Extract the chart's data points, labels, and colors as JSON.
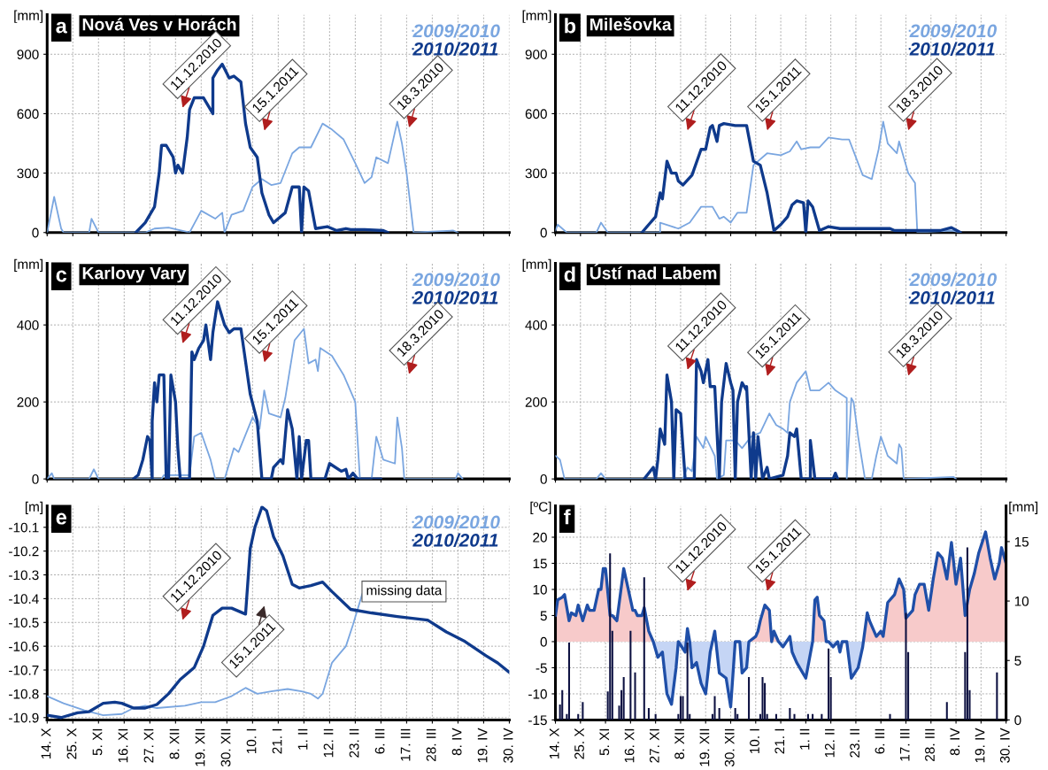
{
  "chart_data": [
    {
      "type": "line",
      "title": "Nová Ves v Horách",
      "ylabel": "[mm]",
      "annotations": [
        "a",
        "11.12.2010",
        "15.1.2011",
        "18.3.2010"
      ],
      "xlim": [
        "2010-10-14",
        "2011-04-30"
      ],
      "xticks": [
        "2010-10-14",
        "2010-10-25",
        "2010-11-05",
        "2010-11-16",
        "2010-11-27",
        "2010-12-08",
        "2010-12-19",
        "2010-12-30",
        "2011-01-10",
        "2011-01-21",
        "2011-02-01",
        "2011-02-12",
        "2011-02-23",
        "2011-03-06",
        "2011-03-17",
        "2011-03-28",
        "2011-04-08",
        "2011-04-19",
        "2011-04-30"
      ],
      "ylim": [
        0,
        1100
      ],
      "yticks": [
        0,
        300,
        600,
        900
      ],
      "tick_labels": "y",
      "grid": true,
      "legend": "top right",
      "series": [
        {
          "name": "2009/2010",
          "color": "#7aa6e0",
          "x": [
            "2010-10-14",
            "2010-10-17",
            "2010-10-20",
            "2010-10-21",
            "2010-11-01",
            "2010-11-02",
            "2010-11-05",
            "2010-11-25",
            "2010-11-29",
            "2010-12-05",
            "2010-12-14",
            "2010-12-19",
            "2010-12-25",
            "2010-12-28",
            "2010-12-29",
            "2011-01-01",
            "2011-01-06",
            "2011-01-10",
            "2011-01-14",
            "2011-01-18",
            "2011-01-22",
            "2011-01-27",
            "2011-01-30",
            "2011-02-04",
            "2011-02-09",
            "2011-02-13",
            "2011-02-18",
            "2011-02-23",
            "2011-02-27",
            "2011-03-02",
            "2011-03-04",
            "2011-03-09",
            "2011-03-13",
            "2011-03-15",
            "2011-03-17",
            "2011-03-20",
            "2011-04-06",
            "2011-04-08"
          ],
          "values": [
            0,
            180,
            20,
            0,
            0,
            70,
            0,
            0,
            20,
            25,
            0,
            110,
            70,
            100,
            0,
            90,
            110,
            230,
            270,
            240,
            250,
            400,
            430,
            430,
            550,
            520,
            470,
            350,
            250,
            280,
            380,
            350,
            560,
            450,
            300,
            0,
            10,
            0
          ]
        },
        {
          "name": "2010/2011",
          "color": "#0f3a8c",
          "x": [
            "2010-11-21",
            "2010-11-25",
            "2010-11-29",
            "2010-12-01",
            "2010-12-02",
            "2010-12-04",
            "2010-12-07",
            "2010-12-08",
            "2010-12-09",
            "2010-12-11",
            "2010-12-13",
            "2010-12-14",
            "2010-12-16",
            "2010-12-20",
            "2010-12-24",
            "2010-12-24",
            "2010-12-26",
            "2010-12-28",
            "2010-12-31",
            "2011-01-02",
            "2011-01-05",
            "2011-01-07",
            "2011-01-09",
            "2011-01-12",
            "2011-01-14",
            "2011-01-17",
            "2011-01-19",
            "2011-01-24",
            "2011-01-27",
            "2011-01-30",
            "2011-01-31",
            "2011-02-01",
            "2011-02-03",
            "2011-02-06",
            "2011-02-11",
            "2011-02-15",
            "2011-02-19",
            "2011-02-21",
            "2011-02-27",
            "2011-03-07",
            "2011-03-09"
          ],
          "values": [
            0,
            50,
            130,
            300,
            440,
            440,
            380,
            300,
            340,
            300,
            480,
            620,
            680,
            680,
            600,
            780,
            820,
            850,
            780,
            790,
            760,
            550,
            430,
            380,
            200,
            90,
            50,
            100,
            230,
            230,
            0,
            230,
            210,
            20,
            30,
            10,
            20,
            15,
            15,
            10,
            0
          ]
        }
      ]
    },
    {
      "type": "line",
      "title": "Milešovka",
      "ylabel": "[mm]",
      "annotations": [
        "b",
        "11.12.2010",
        "15.1.2011",
        "18.3.2010"
      ],
      "xlim": [
        "2010-10-14",
        "2011-04-30"
      ],
      "xticks": [
        "2010-10-14",
        "2010-10-25",
        "2010-11-05",
        "2010-11-16",
        "2010-11-27",
        "2010-12-08",
        "2010-12-19",
        "2010-12-30",
        "2011-01-10",
        "2011-01-21",
        "2011-02-01",
        "2011-02-12",
        "2011-02-23",
        "2011-03-06",
        "2011-03-17",
        "2011-03-28",
        "2011-04-08",
        "2011-04-19",
        "2011-04-30"
      ],
      "ylim": [
        0,
        1100
      ],
      "yticks": [
        0,
        300,
        600,
        900
      ],
      "tick_labels": "y",
      "grid": true,
      "legend": "top right",
      "series": [
        {
          "name": "2009/2010",
          "color": "#7aa6e0",
          "x": [
            "2010-10-14",
            "2010-10-15",
            "2010-10-19",
            "2010-11-01",
            "2010-11-03",
            "2010-11-06",
            "2010-11-29",
            "2010-11-29",
            "2010-12-07",
            "2010-12-12",
            "2010-12-17",
            "2010-12-22",
            "2010-12-25",
            "2010-12-27",
            "2010-12-30",
            "2011-01-02",
            "2011-01-06",
            "2011-01-09",
            "2011-01-15",
            "2011-01-21",
            "2011-01-25",
            "2011-01-28",
            "2011-01-30",
            "2011-02-03",
            "2011-02-07",
            "2011-02-11",
            "2011-02-17",
            "2011-02-20",
            "2011-02-26",
            "2011-03-02",
            "2011-03-05",
            "2011-03-07",
            "2011-03-09",
            "2011-03-13",
            "2011-03-14",
            "2011-03-18",
            "2011-03-21",
            "2011-03-22",
            "2011-04-06",
            "2011-04-10"
          ],
          "values": [
            10,
            40,
            0,
            0,
            50,
            0,
            0,
            50,
            20,
            50,
            130,
            130,
            70,
            80,
            50,
            100,
            100,
            340,
            400,
            390,
            410,
            460,
            420,
            430,
            430,
            480,
            470,
            470,
            290,
            270,
            420,
            560,
            450,
            400,
            460,
            300,
            250,
            0,
            10,
            0
          ]
        },
        {
          "name": "2010/2011",
          "color": "#0f3a8c",
          "x": [
            "2010-11-21",
            "2010-11-24",
            "2010-11-27",
            "2010-11-29",
            "2010-11-30",
            "2010-12-02",
            "2010-12-04",
            "2010-12-06",
            "2010-12-07",
            "2010-12-09",
            "2010-12-13",
            "2010-12-17",
            "2010-12-19",
            "2010-12-21",
            "2010-12-22",
            "2010-12-24",
            "2010-12-25",
            "2010-12-27",
            "2011-01-01",
            "2011-01-05",
            "2011-01-06",
            "2011-01-09",
            "2011-01-12",
            "2011-01-15",
            "2011-01-18",
            "2011-01-21",
            "2011-01-24",
            "2011-01-26",
            "2011-01-28",
            "2011-01-31",
            "2011-02-01",
            "2011-02-02",
            "2011-02-04",
            "2011-02-07",
            "2011-02-11",
            "2011-02-16",
            "2011-02-23",
            "2011-03-10",
            "2011-03-12",
            "2011-04-01",
            "2011-04-06",
            "2011-04-10"
          ],
          "values": [
            0,
            40,
            80,
            200,
            170,
            360,
            300,
            300,
            260,
            240,
            290,
            420,
            420,
            530,
            540,
            460,
            540,
            550,
            540,
            540,
            540,
            360,
            340,
            200,
            10,
            40,
            80,
            140,
            160,
            150,
            0,
            160,
            130,
            10,
            30,
            20,
            20,
            20,
            10,
            10,
            25,
            0
          ]
        }
      ]
    },
    {
      "type": "line",
      "title": "Karlovy Vary",
      "ylabel": "[mm]",
      "annotations": [
        "c",
        "11.12.2010",
        "15.1.2011",
        "18.3.2010"
      ],
      "xlim": [
        "2010-10-14",
        "2011-04-30"
      ],
      "xticks": [
        "2010-10-14",
        "2010-10-25",
        "2010-11-05",
        "2010-11-16",
        "2010-11-27",
        "2010-12-08",
        "2010-12-19",
        "2010-12-30",
        "2011-01-10",
        "2011-01-21",
        "2011-02-01",
        "2011-02-12",
        "2011-02-23",
        "2011-03-06",
        "2011-03-17",
        "2011-03-28",
        "2011-04-08",
        "2011-04-19",
        "2011-04-30"
      ],
      "ylim": [
        0,
        560
      ],
      "yticks": [
        0,
        200,
        400
      ],
      "tick_labels": "y",
      "grid": true,
      "legend": "top right",
      "series": [
        {
          "name": "2009/2010",
          "color": "#7aa6e0",
          "x": [
            "2010-10-14",
            "2010-10-16",
            "2010-10-17",
            "2010-11-01",
            "2010-11-03",
            "2010-11-05",
            "2010-12-02",
            "2010-12-03",
            "2010-12-14",
            "2010-12-16",
            "2010-12-19",
            "2010-12-23",
            "2010-12-25",
            "2010-12-29",
            "2011-01-02",
            "2011-01-04",
            "2011-01-10",
            "2011-01-13",
            "2011-01-15",
            "2011-01-17",
            "2011-01-22",
            "2011-01-24",
            "2011-01-28",
            "2011-02-01",
            "2011-02-03",
            "2011-02-06",
            "2011-02-07",
            "2011-02-08",
            "2011-02-13",
            "2011-02-18",
            "2011-02-23",
            "2011-02-25",
            "2011-03-02",
            "2011-03-04",
            "2011-03-07",
            "2011-03-12",
            "2011-03-13",
            "2011-03-15",
            "2011-03-16",
            "2011-04-07",
            "2011-04-08",
            "2011-04-10"
          ],
          "values": [
            0,
            15,
            0,
            0,
            25,
            0,
            0,
            10,
            10,
            110,
            120,
            50,
            0,
            0,
            80,
            70,
            160,
            130,
            230,
            170,
            160,
            210,
            360,
            390,
            300,
            310,
            280,
            340,
            320,
            270,
            200,
            0,
            0,
            110,
            50,
            40,
            160,
            80,
            0,
            0,
            15,
            0
          ]
        },
        {
          "name": "2010/2011",
          "color": "#0f3a8c",
          "x": [
            "2010-11-20",
            "2010-11-22",
            "2010-11-24",
            "2010-11-26",
            "2010-11-27",
            "2010-11-28",
            "2010-11-28",
            "2010-11-29",
            "2010-11-30",
            "2010-12-01",
            "2010-12-03",
            "2010-12-04",
            "2010-12-05",
            "2010-12-06",
            "2010-12-08",
            "2010-12-09",
            "2010-12-10",
            "2010-12-14",
            "2010-12-15",
            "2010-12-16",
            "2010-12-18",
            "2010-12-20",
            "2010-12-21",
            "2010-12-23",
            "2010-12-24",
            "2010-12-26",
            "2010-12-29",
            "2010-12-31",
            "2011-01-02",
            "2011-01-05",
            "2011-01-09",
            "2011-01-12",
            "2011-01-14",
            "2011-01-18",
            "2011-01-19",
            "2011-01-22",
            "2011-01-23",
            "2011-01-25",
            "2011-01-27",
            "2011-01-29",
            "2011-01-30",
            "2011-01-31",
            "2011-02-02",
            "2011-02-03",
            "2011-02-04",
            "2011-02-10",
            "2011-02-12",
            "2011-02-17",
            "2011-02-19",
            "2011-02-20",
            "2011-02-22",
            "2011-02-24",
            "2011-03-06"
          ],
          "values": [
            0,
            10,
            50,
            110,
            100,
            0,
            150,
            250,
            200,
            270,
            270,
            0,
            0,
            270,
            200,
            80,
            0,
            0,
            330,
            310,
            340,
            360,
            400,
            310,
            380,
            460,
            400,
            380,
            390,
            390,
            220,
            150,
            0,
            0,
            30,
            50,
            40,
            180,
            130,
            0,
            110,
            0,
            100,
            100,
            0,
            0,
            40,
            20,
            25,
            0,
            15,
            0,
            0
          ]
        }
      ]
    },
    {
      "type": "line",
      "title": "Ústí nad Labem",
      "ylabel": "[mm]",
      "annotations": [
        "d",
        "11.12.2010",
        "15.1.2011",
        "18.3.2010"
      ],
      "xlim": [
        "2010-10-14",
        "2011-04-30"
      ],
      "xticks": [
        "2010-10-14",
        "2010-10-25",
        "2010-11-05",
        "2010-11-16",
        "2010-11-27",
        "2010-12-08",
        "2010-12-19",
        "2010-12-30",
        "2011-01-10",
        "2011-01-21",
        "2011-02-01",
        "2011-02-12",
        "2011-02-23",
        "2011-03-06",
        "2011-03-17",
        "2011-03-28",
        "2011-04-08",
        "2011-04-19",
        "2011-04-30"
      ],
      "ylim": [
        0,
        560
      ],
      "yticks": [
        0,
        200,
        400
      ],
      "tick_labels": "y",
      "grid": true,
      "legend": "top right",
      "series": [
        {
          "name": "2009/2010",
          "color": "#7aa6e0",
          "x": [
            "2010-10-14",
            "2010-10-16",
            "2010-10-18",
            "2010-11-01",
            "2010-11-03",
            "2010-11-05",
            "2010-12-09",
            "2010-12-11",
            "2010-12-13",
            "2010-12-15",
            "2010-12-18",
            "2010-12-19",
            "2010-12-23",
            "2010-12-24",
            "2010-12-27",
            "2010-12-28",
            "2011-01-01",
            "2011-01-04",
            "2011-01-08",
            "2011-01-12",
            "2011-01-16",
            "2011-01-19",
            "2011-01-22",
            "2011-01-24",
            "2011-01-25",
            "2011-01-28",
            "2011-02-01",
            "2011-02-03",
            "2011-02-07",
            "2011-02-11",
            "2011-02-14",
            "2011-02-19",
            "2011-02-19",
            "2011-02-21",
            "2011-02-22",
            "2011-02-24",
            "2011-02-27",
            "2011-03-02",
            "2011-03-04",
            "2011-03-06",
            "2011-03-09",
            "2011-03-13",
            "2011-03-14",
            "2011-03-15",
            "2011-03-16",
            "2011-04-07",
            "2011-04-08"
          ],
          "values": [
            60,
            50,
            0,
            0,
            15,
            0,
            0,
            30,
            20,
            110,
            80,
            110,
            60,
            0,
            10,
            100,
            100,
            80,
            110,
            120,
            170,
            140,
            130,
            120,
            200,
            250,
            280,
            230,
            230,
            250,
            230,
            210,
            0,
            210,
            200,
            110,
            0,
            0,
            60,
            110,
            60,
            40,
            90,
            80,
            0,
            5,
            0
          ]
        },
        {
          "name": "2010/2011",
          "color": "#0f3a8c",
          "x": [
            "2010-11-22",
            "2010-11-26",
            "2010-11-27",
            "2010-11-28",
            "2010-11-29",
            "2010-12-01",
            "2010-12-02",
            "2010-12-04",
            "2010-12-05",
            "2010-12-06",
            "2010-12-08",
            "2010-12-10",
            "2010-12-14",
            "2010-12-15",
            "2010-12-17",
            "2010-12-18",
            "2010-12-20",
            "2010-12-21",
            "2010-12-23",
            "2010-12-25",
            "2010-12-26",
            "2010-12-28",
            "2010-12-30",
            "2010-12-31",
            "2011-01-01",
            "2011-01-02",
            "2011-01-04",
            "2011-01-06",
            "2011-01-06",
            "2011-01-08",
            "2011-01-09",
            "2011-01-10",
            "2011-01-11",
            "2011-01-13",
            "2011-01-15",
            "2011-01-16",
            "2011-01-22",
            "2011-01-24",
            "2011-01-25",
            "2011-01-27",
            "2011-01-28",
            "2011-01-30",
            "2011-02-03",
            "2011-02-03",
            "2011-02-05",
            "2011-02-13",
            "2011-02-14",
            "2011-02-15"
          ],
          "values": [
            0,
            30,
            0,
            50,
            130,
            90,
            270,
            200,
            0,
            180,
            170,
            0,
            0,
            310,
            280,
            250,
            310,
            240,
            240,
            0,
            200,
            300,
            250,
            230,
            0,
            200,
            250,
            230,
            240,
            0,
            120,
            0,
            110,
            0,
            30,
            0,
            10,
            60,
            120,
            110,
            130,
            0,
            0,
            100,
            0,
            0,
            15,
            0
          ]
        }
      ]
    },
    {
      "type": "line",
      "ylabel": "[m]",
      "annotations": [
        "e",
        "missing data",
        "11.12.2010",
        "15.1.2011"
      ],
      "xlim": [
        "2010-10-14",
        "2011-04-30"
      ],
      "xticks": [
        {
          "value": "2010-10-14",
          "label": "14. X"
        },
        {
          "value": "2010-10-25",
          "label": "25. X"
        },
        {
          "value": "2010-11-05",
          "label": "5. XI"
        },
        {
          "value": "2010-11-16",
          "label": "16. XI"
        },
        {
          "value": "2010-11-27",
          "label": "27. XI"
        },
        {
          "value": "2010-12-08",
          "label": "8. XII"
        },
        {
          "value": "2010-12-19",
          "label": "19. XII"
        },
        {
          "value": "2010-12-30",
          "label": "30. XII"
        },
        {
          "value": "2011-01-10",
          "label": "10. I"
        },
        {
          "value": "2011-01-21",
          "label": "21. I"
        },
        {
          "value": "2011-02-01",
          "label": "1. II"
        },
        {
          "value": "2011-02-12",
          "label": "12. II"
        },
        {
          "value": "2011-02-23",
          "label": "23. II"
        },
        {
          "value": "2011-03-06",
          "label": "6. III"
        },
        {
          "value": "2011-03-17",
          "label": "17. III"
        },
        {
          "value": "2011-03-28",
          "label": "28. III"
        },
        {
          "value": "2011-04-08",
          "label": "8. IV"
        },
        {
          "value": "2011-04-19",
          "label": "19. IV"
        },
        {
          "value": "2011-04-30",
          "label": "30. IV"
        }
      ],
      "ylim": [
        -10.91,
        -10.01
      ],
      "yticks": [
        -10.9,
        -10.8,
        -10.7,
        -10.6,
        -10.5,
        -10.4,
        -10.3,
        -10.2,
        -10.1
      ],
      "grid": true,
      "legend": "top right",
      "series": [
        {
          "name": "2009/2010",
          "color": "#7aa6e0",
          "x": [
            "2010-10-14",
            "2010-10-21",
            "2010-10-30",
            "2010-11-07",
            "2010-11-15",
            "2010-11-20",
            "2010-11-25",
            "2010-11-30",
            "2010-12-12",
            "2010-12-19",
            "2010-12-25",
            "2011-01-01",
            "2011-01-07",
            "2011-01-12",
            "2011-01-18",
            "2011-01-25",
            "2011-01-31",
            "2011-02-04",
            "2011-02-07",
            "2011-02-09",
            "2011-02-13",
            "2011-02-19",
            "2011-02-22",
            "2011-02-26"
          ],
          "values": [
            -10.81,
            -10.84,
            -10.87,
            -10.89,
            -10.885,
            -10.86,
            -10.85,
            -10.86,
            -10.85,
            -10.835,
            -10.835,
            -10.81,
            -10.775,
            -10.8,
            -10.79,
            -10.78,
            -10.79,
            -10.8,
            -10.82,
            -10.8,
            -10.67,
            -10.6,
            -10.51,
            -10.38
          ]
        },
        {
          "name": "2010/2011",
          "color": "#0f3a8c",
          "x": [
            "2010-10-14",
            "2010-10-20",
            "2010-10-27",
            "2010-11-01",
            "2010-11-07",
            "2010-11-12",
            "2010-11-15",
            "2010-11-20",
            "2010-11-25",
            "2010-11-30",
            "2010-12-05",
            "2010-12-10",
            "2010-12-16",
            "2010-12-20",
            "2010-12-24",
            "2010-12-28",
            "2011-01-01",
            "2011-01-07",
            "2011-01-09",
            "2011-01-11",
            "2011-01-14",
            "2011-01-16",
            "2011-01-19",
            "2011-01-23",
            "2011-01-27",
            "2011-01-30",
            "2011-02-04",
            "2011-02-09",
            "2011-02-13",
            "2011-02-21",
            "2011-03-02",
            "2011-03-13",
            "2011-03-26",
            "2011-04-03",
            "2011-04-11",
            "2011-04-20",
            "2011-04-25",
            "2011-04-30"
          ],
          "values": [
            -10.89,
            -10.9,
            -10.88,
            -10.875,
            -10.84,
            -10.835,
            -10.84,
            -10.86,
            -10.86,
            -10.845,
            -10.8,
            -10.74,
            -10.69,
            -10.6,
            -10.47,
            -10.44,
            -10.44,
            -10.465,
            -10.19,
            -10.1,
            -10.015,
            -10.03,
            -10.14,
            -10.22,
            -10.34,
            -10.355,
            -10.345,
            -10.33,
            -10.37,
            -10.445,
            -10.46,
            -10.475,
            -10.49,
            -10.54,
            -10.58,
            -10.64,
            -10.67,
            -10.71
          ]
        }
      ]
    },
    {
      "type": "line",
      "ylabel": "[ºC]",
      "y2label": "[mm]",
      "annotations": [
        "f",
        "11.12.2010",
        "15.1.2011"
      ],
      "xlim": [
        "2010-10-14",
        "2011-04-30"
      ],
      "xticks": [
        {
          "value": "2010-10-14",
          "label": "14. X"
        },
        {
          "value": "2010-10-25",
          "label": "25. X"
        },
        {
          "value": "2010-11-05",
          "label": "5. XI"
        },
        {
          "value": "2010-11-16",
          "label": "16. XI"
        },
        {
          "value": "2010-11-27",
          "label": "27. XI"
        },
        {
          "value": "2010-12-08",
          "label": "8. XII"
        },
        {
          "value": "2010-12-19",
          "label": "19. XII"
        },
        {
          "value": "2010-12-30",
          "label": "30. XII"
        },
        {
          "value": "2011-01-10",
          "label": "10. I"
        },
        {
          "value": "2011-01-21",
          "label": "21. I"
        },
        {
          "value": "2011-02-01",
          "label": "1. II"
        },
        {
          "value": "2011-02-12",
          "label": "12. II"
        },
        {
          "value": "2011-02-23",
          "label": "23. II"
        },
        {
          "value": "2011-03-06",
          "label": "6. III"
        },
        {
          "value": "2011-03-17",
          "label": "17. III"
        },
        {
          "value": "2011-03-28",
          "label": "28. III"
        },
        {
          "value": "2011-04-08",
          "label": "8. IV"
        },
        {
          "value": "2011-04-19",
          "label": "19. IV"
        },
        {
          "value": "2011-04-30",
          "label": "30. IV"
        }
      ],
      "ylim": [
        -15,
        26
      ],
      "yticks": [
        -15,
        -10,
        -5,
        0,
        5,
        10,
        15,
        20
      ],
      "y2lim": [
        0,
        18
      ],
      "y2ticks": [
        0,
        5,
        10,
        15
      ],
      "grid": true,
      "series": [
        {
          "type": "bar",
          "axis": "y2",
          "color": "#0c1040",
          "x": [
            "2010-10-16",
            "2010-10-17",
            "2010-10-19",
            "2010-10-20",
            "2010-10-24",
            "2010-10-26",
            "2010-11-06",
            "2010-11-07",
            "2010-11-08",
            "2010-11-11",
            "2010-11-12",
            "2010-11-13",
            "2010-11-16",
            "2010-11-18",
            "2010-11-22",
            "2010-11-24",
            "2010-11-27",
            "2010-12-07",
            "2010-12-08",
            "2010-12-09",
            "2010-12-11",
            "2010-12-12",
            "2010-12-22",
            "2010-12-23",
            "2010-12-25",
            "2011-01-01",
            "2011-01-02",
            "2011-01-07",
            "2011-01-12",
            "2011-01-13",
            "2011-01-14",
            "2011-01-15",
            "2011-01-19",
            "2011-01-25",
            "2011-01-27",
            "2011-02-02",
            "2011-02-04",
            "2011-02-08",
            "2011-02-11",
            "2011-02-12",
            "2011-03-10",
            "2011-03-17",
            "2011-03-18",
            "2011-04-04",
            "2011-04-12",
            "2011-04-13",
            "2011-04-14",
            "2011-04-26"
          ],
          "values": [
            1.3,
            2.5,
            0.5,
            6.5,
            0.5,
            1.5,
            2.4,
            14,
            7.5,
            1.2,
            2.5,
            3.6,
            7.5,
            4,
            12,
            1,
            0.5,
            0.5,
            2,
            2,
            6.5,
            0.5,
            0.5,
            2,
            1,
            1,
            0.5,
            3.6,
            0.5,
            3.6,
            3.1,
            0.5,
            0.5,
            1,
            0.5,
            0.5,
            0.5,
            0.5,
            6,
            3.6,
            0.5,
            9,
            5.7,
            1.5,
            5.7,
            14.5,
            2.5,
            4
          ]
        },
        {
          "type": "line",
          "color": "#1f4fa8",
          "x": [
            "2010-10-14",
            "2010-10-15",
            "2010-10-17",
            "2010-10-18",
            "2010-10-20",
            "2010-10-21",
            "2010-10-23",
            "2010-10-24",
            "2010-10-26",
            "2010-10-28",
            "2010-10-29",
            "2010-10-31",
            "2010-11-02",
            "2010-11-03",
            "2010-11-04",
            "2010-11-05",
            "2010-11-07",
            "2010-11-08",
            "2010-11-10",
            "2010-11-13",
            "2010-11-15",
            "2010-11-17",
            "2010-11-18",
            "2010-11-19",
            "2010-11-21",
            "2010-11-22",
            "2010-11-24",
            "2010-11-26",
            "2010-11-28",
            "2010-11-30",
            "2010-12-02",
            "2010-12-04",
            "2010-12-06",
            "2010-12-07",
            "2010-12-10",
            "2010-12-11",
            "2010-12-12",
            "2010-12-13",
            "2010-12-15",
            "2010-12-17",
            "2010-12-19",
            "2010-12-21",
            "2010-12-23",
            "2010-12-24",
            "2010-12-25",
            "2010-12-28",
            "2010-12-30",
            "2011-01-01",
            "2011-01-03",
            "2011-01-04",
            "2011-01-06",
            "2011-01-07",
            "2011-01-10",
            "2011-01-11",
            "2011-01-12",
            "2011-01-14",
            "2011-01-16",
            "2011-01-17",
            "2011-01-18",
            "2011-01-20",
            "2011-01-22",
            "2011-01-25",
            "2011-01-26",
            "2011-01-28",
            "2011-02-01",
            "2011-02-04",
            "2011-02-05",
            "2011-02-06",
            "2011-02-07",
            "2011-02-09",
            "2011-02-10",
            "2011-02-11",
            "2011-02-13",
            "2011-02-15",
            "2011-02-16",
            "2011-02-17",
            "2011-02-19",
            "2011-02-21",
            "2011-02-24",
            "2011-02-26",
            "2011-02-28",
            "2011-03-01",
            "2011-03-04",
            "2011-03-06",
            "2011-03-07",
            "2011-03-09",
            "2011-03-12",
            "2011-03-14",
            "2011-03-16",
            "2011-03-17",
            "2011-03-20",
            "2011-03-21",
            "2011-03-23",
            "2011-03-25",
            "2011-03-27",
            "2011-03-29",
            "2011-03-31",
            "2011-04-02",
            "2011-04-04",
            "2011-04-06",
            "2011-04-08",
            "2011-04-10",
            "2011-04-12",
            "2011-04-14",
            "2011-04-16",
            "2011-04-18",
            "2011-04-21",
            "2011-04-23",
            "2011-04-25",
            "2011-04-27",
            "2011-04-28",
            "2011-04-30"
          ],
          "values": [
            5,
            8,
            8.5,
            9,
            4,
            5.5,
            5,
            7,
            4,
            7,
            6,
            6,
            10,
            10,
            14,
            14,
            5,
            5,
            4,
            14,
            10,
            6,
            6,
            5,
            5,
            6.5,
            2,
            0,
            -3,
            -2,
            -10,
            -12,
            -5,
            0,
            -2,
            2.5,
            0,
            -5,
            -4,
            -8,
            -10,
            -2,
            2,
            -2,
            -6,
            -7,
            -12.5,
            0,
            0,
            -6,
            -5,
            0,
            1,
            2,
            4,
            7,
            6,
            0,
            2,
            0,
            -1,
            1,
            -2,
            -4,
            -7,
            0,
            8,
            8.5,
            5,
            4,
            0,
            0,
            -1,
            0,
            -2,
            0,
            0,
            -7,
            -5,
            -1,
            5.5,
            4,
            1,
            2,
            1,
            7.5,
            9,
            12,
            10,
            4.5,
            6,
            9,
            11,
            11,
            6,
            12,
            17,
            16,
            12,
            19,
            11,
            16,
            5,
            10,
            13,
            17,
            21,
            16,
            12,
            15,
            18,
            15
          ]
        }
      ]
    }
  ]
}
